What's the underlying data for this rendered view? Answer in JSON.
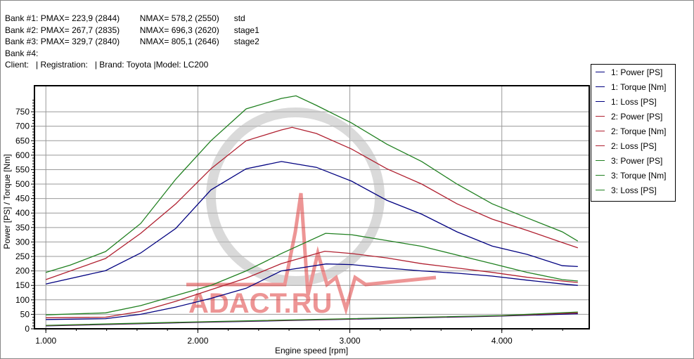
{
  "header": {
    "banks": [
      {
        "label": "Bank #1:",
        "pmax": "PMAX= 223,9 (2844)",
        "nmax": "NMAX= 578,2 (2550)",
        "name": "std"
      },
      {
        "label": "Bank #2:",
        "pmax": "PMAX= 267,7 (2835)",
        "nmax": "NMAX= 696,3 (2620)",
        "name": "stage1"
      },
      {
        "label": "Bank #3:",
        "pmax": "PMAX= 329,7 (2840)",
        "nmax": "NMAX= 805,1 (2646)",
        "name": "stage2"
      },
      {
        "label": "Bank #4:",
        "pmax": "",
        "nmax": "",
        "name": ""
      }
    ],
    "info": "Client:   | Registration:   | Brand: Toyota |Model: LC200"
  },
  "watermark": {
    "text": "ADACT.RU"
  },
  "chart_data": {
    "type": "line",
    "title": "",
    "xlabel": "Engine speed [rpm]",
    "ylabel": "Power [PS] / Torque [Nm]",
    "xlim": [
      925,
      4575
    ],
    "ylim": [
      0,
      840
    ],
    "xticks": [
      1000,
      2000,
      3000,
      4000
    ],
    "xtick_labels": [
      "1.000",
      "2.000",
      "3.000",
      "4.000"
    ],
    "yticks": [
      0,
      50,
      100,
      150,
      200,
      250,
      300,
      350,
      400,
      450,
      500,
      550,
      600,
      650,
      700,
      750
    ],
    "ytick_labels": [
      "0",
      "50",
      "100",
      "150",
      "200",
      "250",
      "300",
      "350",
      "400",
      "450",
      "500",
      "550",
      "600",
      "650",
      "700",
      "750"
    ],
    "grid": true,
    "legend_position": "right",
    "series": [
      {
        "name": "1: Power [PS]",
        "color": "#000080",
        "x": [
          1000,
          1393,
          1624,
          1855,
          2086,
          2318,
          2549,
          2844,
          3012,
          3243,
          3473,
          3705,
          3936,
          4167,
          4398,
          4500
        ],
        "y": [
          32,
          35,
          50,
          75,
          105,
          140,
          200,
          224,
          222,
          210,
          200,
          192,
          182,
          168,
          155,
          150
        ]
      },
      {
        "name": "1: Torque [Nm]",
        "color": "#000080",
        "x": [
          1000,
          1393,
          1624,
          1855,
          2086,
          2318,
          2550,
          2780,
          3012,
          3243,
          3473,
          3705,
          3936,
          4167,
          4398,
          4500
        ],
        "y": [
          155,
          201,
          262,
          347,
          480,
          553,
          578,
          558,
          510,
          444,
          396,
          335,
          286,
          257,
          218,
          215
        ]
      },
      {
        "name": "1: Loss [PS]",
        "color": "#000080",
        "x": [
          1000,
          2000,
          3000,
          4000,
          4500
        ],
        "y": [
          10,
          22,
          33,
          44,
          52
        ]
      },
      {
        "name": "2: Power [PS]",
        "color": "#b02030",
        "x": [
          1000,
          1393,
          1624,
          1855,
          2086,
          2318,
          2549,
          2835,
          3012,
          3243,
          3473,
          3705,
          3936,
          4167,
          4398,
          4500
        ],
        "y": [
          38,
          40,
          60,
          95,
          135,
          175,
          225,
          268,
          260,
          245,
          225,
          210,
          195,
          178,
          165,
          160
        ]
      },
      {
        "name": "2: Torque [Nm]",
        "color": "#b02030",
        "x": [
          1000,
          1393,
          1624,
          1855,
          2086,
          2318,
          2549,
          2620,
          2780,
          3012,
          3243,
          3473,
          3705,
          3936,
          4167,
          4398,
          4500
        ],
        "y": [
          170,
          243,
          330,
          432,
          553,
          650,
          687,
          696,
          675,
          621,
          553,
          500,
          432,
          379,
          340,
          298,
          280
        ]
      },
      {
        "name": "2: Loss [PS]",
        "color": "#b02030",
        "x": [
          1000,
          2000,
          3000,
          4000,
          4500
        ],
        "y": [
          11,
          23,
          34,
          45,
          55
        ]
      },
      {
        "name": "3: Power [PS]",
        "color": "#208020",
        "x": [
          1000,
          1393,
          1624,
          1855,
          2086,
          2318,
          2549,
          2840,
          3012,
          3243,
          3473,
          3705,
          3936,
          4167,
          4398,
          4500
        ],
        "y": [
          48,
          55,
          80,
          115,
          150,
          200,
          260,
          330,
          325,
          305,
          285,
          255,
          225,
          195,
          170,
          165
        ]
      },
      {
        "name": "3: Torque [Nm]",
        "color": "#208020",
        "x": [
          1000,
          1160,
          1393,
          1624,
          1855,
          2086,
          2318,
          2549,
          2646,
          2780,
          3012,
          3243,
          3473,
          3705,
          3936,
          4167,
          4398,
          4500
        ],
        "y": [
          195,
          220,
          267,
          364,
          517,
          650,
          760,
          796,
          805,
          772,
          711,
          638,
          578,
          500,
          432,
          383,
          335,
          303
        ]
      },
      {
        "name": "3: Loss [PS]",
        "color": "#208020",
        "x": [
          1000,
          2000,
          3000,
          4000,
          4500
        ],
        "y": [
          12,
          24,
          35,
          46,
          58
        ]
      }
    ]
  }
}
